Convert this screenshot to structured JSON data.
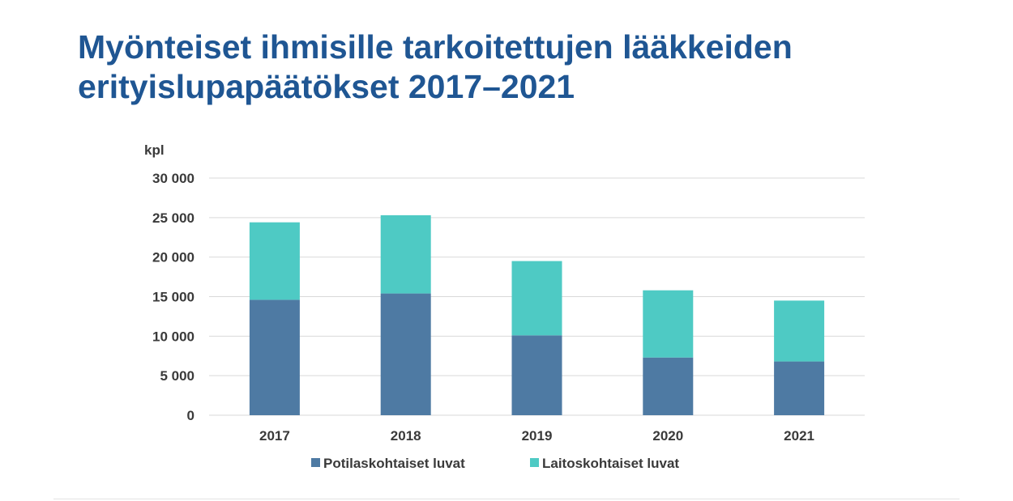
{
  "title": {
    "line1": "Myönteiset ihmisille tarkoitettujen lääkkeiden",
    "line2": "erityislupapäätökset 2017–2021"
  },
  "colors": {
    "title": "#1f5693",
    "series": [
      "#4e7aa3",
      "#4ecac4"
    ],
    "grid": "#d9d9d9",
    "text": "#3a3a3a"
  },
  "chart_data": {
    "type": "bar",
    "stacked": true,
    "unit_label": "kpl",
    "categories": [
      "2017",
      "2018",
      "2019",
      "2020",
      "2021"
    ],
    "series": [
      {
        "name": "Potilaskohtaiset luvat",
        "values": [
          14600,
          15400,
          10100,
          7300,
          6800
        ]
      },
      {
        "name": "Laitoskohtaiset luvat",
        "values": [
          9800,
          9900,
          9400,
          8500,
          7700
        ]
      }
    ],
    "ylim": [
      0,
      30000
    ],
    "yticks": [
      0,
      5000,
      10000,
      15000,
      20000,
      25000,
      30000
    ],
    "ytick_labels": [
      "0",
      "5 000",
      "10 000",
      "15 000",
      "20 000",
      "25 000",
      "30 000"
    ],
    "grid": true,
    "legend_position": "bottom"
  }
}
